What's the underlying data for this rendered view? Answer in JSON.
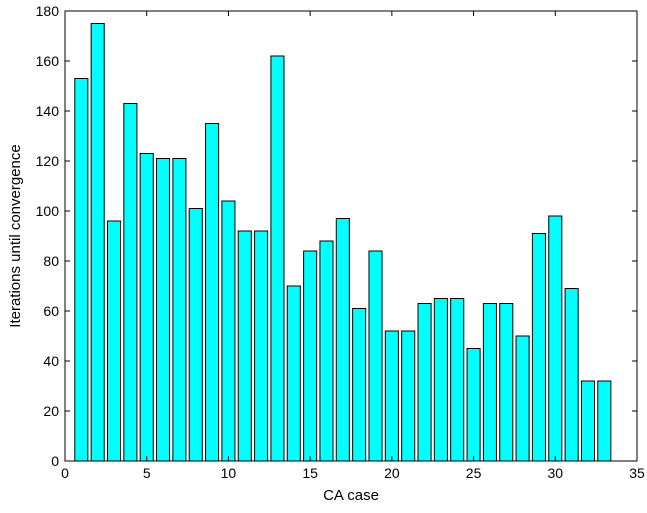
{
  "chart_data": {
    "type": "bar",
    "title": "",
    "xlabel": "CA case",
    "ylabel": "Iterations until convergence",
    "xlim": [
      0,
      35
    ],
    "ylim": [
      0,
      180
    ],
    "xticks": [
      0,
      5,
      10,
      15,
      20,
      25,
      30,
      35
    ],
    "yticks": [
      0,
      20,
      40,
      60,
      80,
      100,
      120,
      140,
      160,
      180
    ],
    "grid": false,
    "legend": "none",
    "bar_color": "#00ffff",
    "bar_edge_color": "#000000",
    "categories": [
      1,
      2,
      3,
      4,
      5,
      6,
      7,
      8,
      9,
      10,
      11,
      12,
      13,
      14,
      15,
      16,
      17,
      18,
      19,
      20,
      21,
      22,
      23,
      24,
      25,
      26,
      27,
      28,
      29,
      30,
      31,
      32,
      33
    ],
    "values": [
      153,
      175,
      96,
      143,
      123,
      121,
      121,
      101,
      135,
      104,
      92,
      92,
      162,
      70,
      84,
      88,
      97,
      61,
      84,
      52,
      52,
      63,
      65,
      65,
      45,
      63,
      63,
      50,
      91,
      98,
      69,
      32,
      32
    ]
  }
}
